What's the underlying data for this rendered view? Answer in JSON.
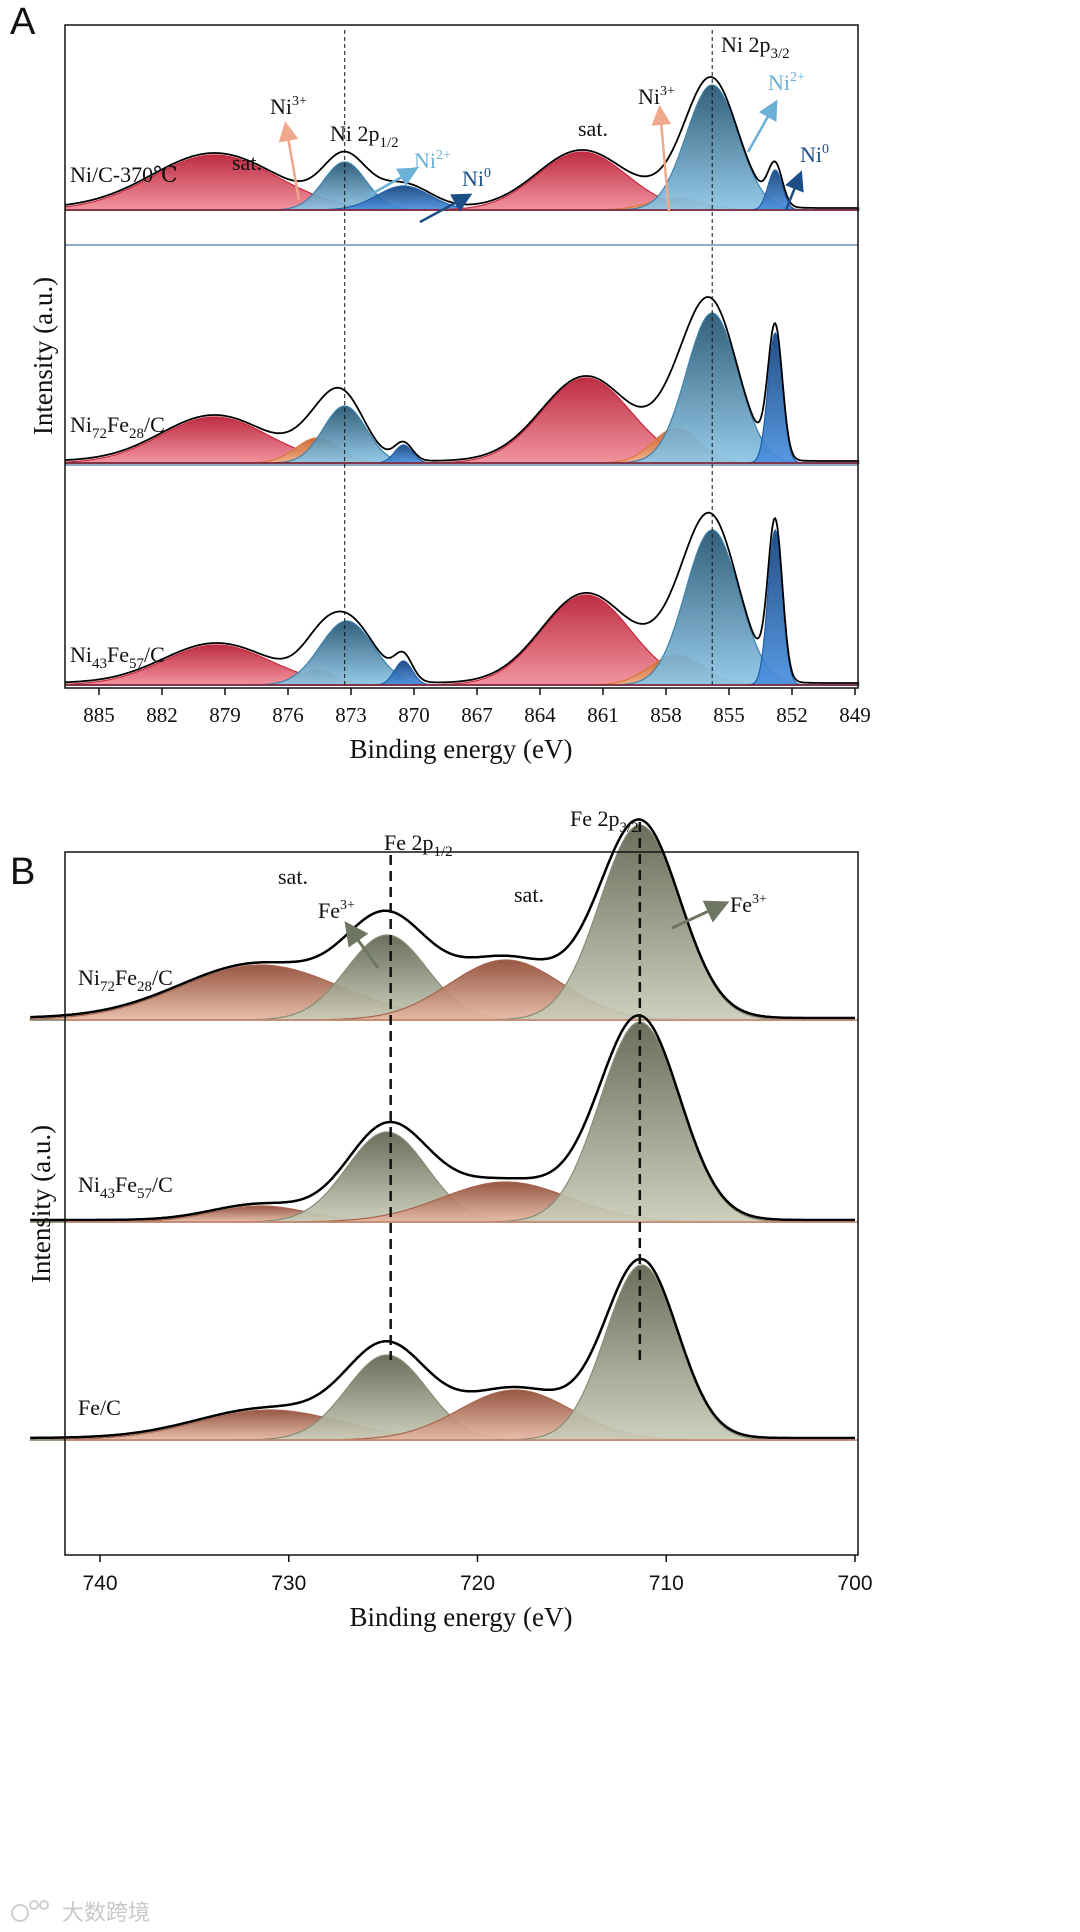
{
  "panels": {
    "A": {
      "letter": "A"
    },
    "B": {
      "letter": "B"
    }
  },
  "annotations": {
    "A": {
      "sat_left": "sat.",
      "sat_right": "sat.",
      "ni3_left": {
        "main": "Ni",
        "sup": "3+"
      },
      "ni3_right": {
        "main": "Ni",
        "sup": "3+"
      },
      "ni2_left": {
        "main": "Ni",
        "sup": "2+"
      },
      "ni2_right": {
        "main": "Ni",
        "sup": "2+"
      },
      "ni0_left": {
        "main": "Ni",
        "sup": "0"
      },
      "ni0_right": {
        "main": "Ni",
        "sup": "0"
      },
      "p12": {
        "main": "Ni 2p",
        "sub": "1/2"
      },
      "p32": {
        "main": "Ni 2p",
        "sub": "3/2"
      }
    },
    "B": {
      "sat_left": "sat.",
      "sat_right": "sat.",
      "fe3_left": {
        "main": "Fe",
        "sup": "3+"
      },
      "fe3_right": {
        "main": "Fe",
        "sup": "3+"
      },
      "p12": {
        "main": "Fe 2p",
        "sub": "1/2"
      },
      "p32": {
        "main": "Fe 2p",
        "sub": "3/2"
      }
    }
  },
  "colors": {
    "sat_ni": "#c9283e",
    "ni3": "#d97838",
    "ni2": "#3b82ad",
    "ni0": "#1f5fae",
    "fe3": "#868c74",
    "sat_fe": "#a8634b",
    "envelope": "#000000",
    "ref_line": "#111111"
  },
  "watermark": "大数跨境",
  "chart_data": [
    {
      "type": "area",
      "panel": "A",
      "title": "",
      "xlabel": "Binding energy (eV)",
      "ylabel": "Intensity (a.u.)",
      "xlim": [
        886.6,
        848.8
      ],
      "xticks": [
        "885",
        "882",
        "879",
        "876",
        "873",
        "870",
        "867",
        "864",
        "861",
        "858",
        "855",
        "852",
        "849"
      ],
      "reference_lines": [
        873.3,
        855.8
      ],
      "spectra": [
        {
          "label_parts": [
            [
              "Ni/C-370℃",
              ""
            ]
          ],
          "components": [
            {
              "type": "sat_ni",
              "center": 879.5,
              "height": 0.55,
              "fwhm": 7.0
            },
            {
              "type": "ni2",
              "center": 873.3,
              "height": 0.48,
              "fwhm": 2.4
            },
            {
              "type": "ni0",
              "center": 870.5,
              "height": 0.24,
              "fwhm": 3.0
            },
            {
              "type": "sat_ni",
              "center": 862.0,
              "height": 0.58,
              "fwhm": 5.0
            },
            {
              "type": "ni3",
              "center": 857.5,
              "height": 0.12,
              "fwhm": 3.0
            },
            {
              "type": "ni2",
              "center": 855.8,
              "height": 1.25,
              "fwhm": 2.9
            },
            {
              "type": "ni0",
              "center": 852.8,
              "height": 0.4,
              "fwhm": 0.8
            }
          ]
        },
        {
          "label_parts": [
            [
              "Ni",
              ""
            ],
            [
              "72",
              "sub"
            ],
            [
              "Fe",
              ""
            ],
            [
              "28",
              "sub"
            ],
            [
              "/C",
              ""
            ]
          ],
          "components": [
            {
              "type": "sat_ni",
              "center": 879.5,
              "height": 0.46,
              "fwhm": 6.0
            },
            {
              "type": "ni3",
              "center": 874.6,
              "height": 0.25,
              "fwhm": 2.4
            },
            {
              "type": "ni2",
              "center": 873.3,
              "height": 0.57,
              "fwhm": 2.4
            },
            {
              "type": "ni0",
              "center": 870.5,
              "height": 0.18,
              "fwhm": 1.0
            },
            {
              "type": "sat_ni",
              "center": 861.8,
              "height": 0.85,
              "fwhm": 5.0
            },
            {
              "type": "ni3",
              "center": 857.5,
              "height": 0.35,
              "fwhm": 2.6
            },
            {
              "type": "ni2",
              "center": 855.8,
              "height": 1.5,
              "fwhm": 2.9
            },
            {
              "type": "ni0",
              "center": 852.8,
              "height": 1.3,
              "fwhm": 0.8
            }
          ]
        },
        {
          "label_parts": [
            [
              "Ni",
              ""
            ],
            [
              "43",
              "sub"
            ],
            [
              "Fe",
              ""
            ],
            [
              "57",
              "sub"
            ],
            [
              "/C",
              ""
            ]
          ],
          "components": [
            {
              "type": "sat_ni",
              "center": 879.4,
              "height": 0.4,
              "fwhm": 6.0
            },
            {
              "type": "ni3",
              "center": 874.6,
              "height": 0.15,
              "fwhm": 2.0
            },
            {
              "type": "ni2",
              "center": 873.2,
              "height": 0.64,
              "fwhm": 3.0
            },
            {
              "type": "ni0",
              "center": 870.5,
              "height": 0.24,
              "fwhm": 1.0
            },
            {
              "type": "sat_ni",
              "center": 861.8,
              "height": 0.9,
              "fwhm": 5.0
            },
            {
              "type": "ni3",
              "center": 857.5,
              "height": 0.3,
              "fwhm": 3.0
            },
            {
              "type": "ni2",
              "center": 855.8,
              "height": 1.55,
              "fwhm": 3.0
            },
            {
              "type": "ni0",
              "center": 852.8,
              "height": 1.55,
              "fwhm": 0.8
            }
          ]
        }
      ]
    },
    {
      "type": "area",
      "panel": "B",
      "title": "",
      "xlabel": "Binding energy (eV)",
      "ylabel": "Intensity (a.u.)",
      "xlim": [
        743.7,
        700.0
      ],
      "xticks": [
        "740",
        "730",
        "720",
        "710",
        "700"
      ],
      "reference_lines": [
        724.6,
        711.4
      ],
      "spectra": [
        {
          "label_parts": [
            [
              "Ni",
              ""
            ],
            [
              "72",
              "sub"
            ],
            [
              "Fe",
              ""
            ],
            [
              "28",
              "sub"
            ],
            [
              "/C",
              ""
            ]
          ],
          "components": [
            {
              "type": "sat_fe",
              "center": 731.5,
              "height": 0.55,
              "fwhm": 10.0
            },
            {
              "type": "fe3",
              "center": 724.8,
              "height": 0.85,
              "fwhm": 5.0
            },
            {
              "type": "sat_fe",
              "center": 718.5,
              "height": 0.6,
              "fwhm": 7.0
            },
            {
              "type": "fe3",
              "center": 711.4,
              "height": 1.95,
              "fwhm": 5.0
            }
          ]
        },
        {
          "label_parts": [
            [
              "Ni",
              ""
            ],
            [
              "43",
              "sub"
            ],
            [
              "Fe",
              ""
            ],
            [
              "57",
              "sub"
            ],
            [
              "/C",
              ""
            ]
          ],
          "components": [
            {
              "type": "sat_fe",
              "center": 731.5,
              "height": 0.16,
              "fwhm": 6.0
            },
            {
              "type": "fe3",
              "center": 724.8,
              "height": 0.9,
              "fwhm": 5.0
            },
            {
              "type": "sat_fe",
              "center": 718.5,
              "height": 0.4,
              "fwhm": 8.0
            },
            {
              "type": "fe3",
              "center": 711.4,
              "height": 2.0,
              "fwhm": 5.0
            }
          ]
        },
        {
          "label_parts": [
            [
              "Fe/C",
              ""
            ]
          ],
          "components": [
            {
              "type": "sat_fe",
              "center": 731.0,
              "height": 0.3,
              "fwhm": 9.0
            },
            {
              "type": "fe3",
              "center": 724.8,
              "height": 0.85,
              "fwhm": 5.0
            },
            {
              "type": "sat_fe",
              "center": 718.0,
              "height": 0.5,
              "fwhm": 7.0
            },
            {
              "type": "fe3",
              "center": 711.3,
              "height": 1.75,
              "fwhm": 4.5
            }
          ]
        }
      ]
    }
  ]
}
